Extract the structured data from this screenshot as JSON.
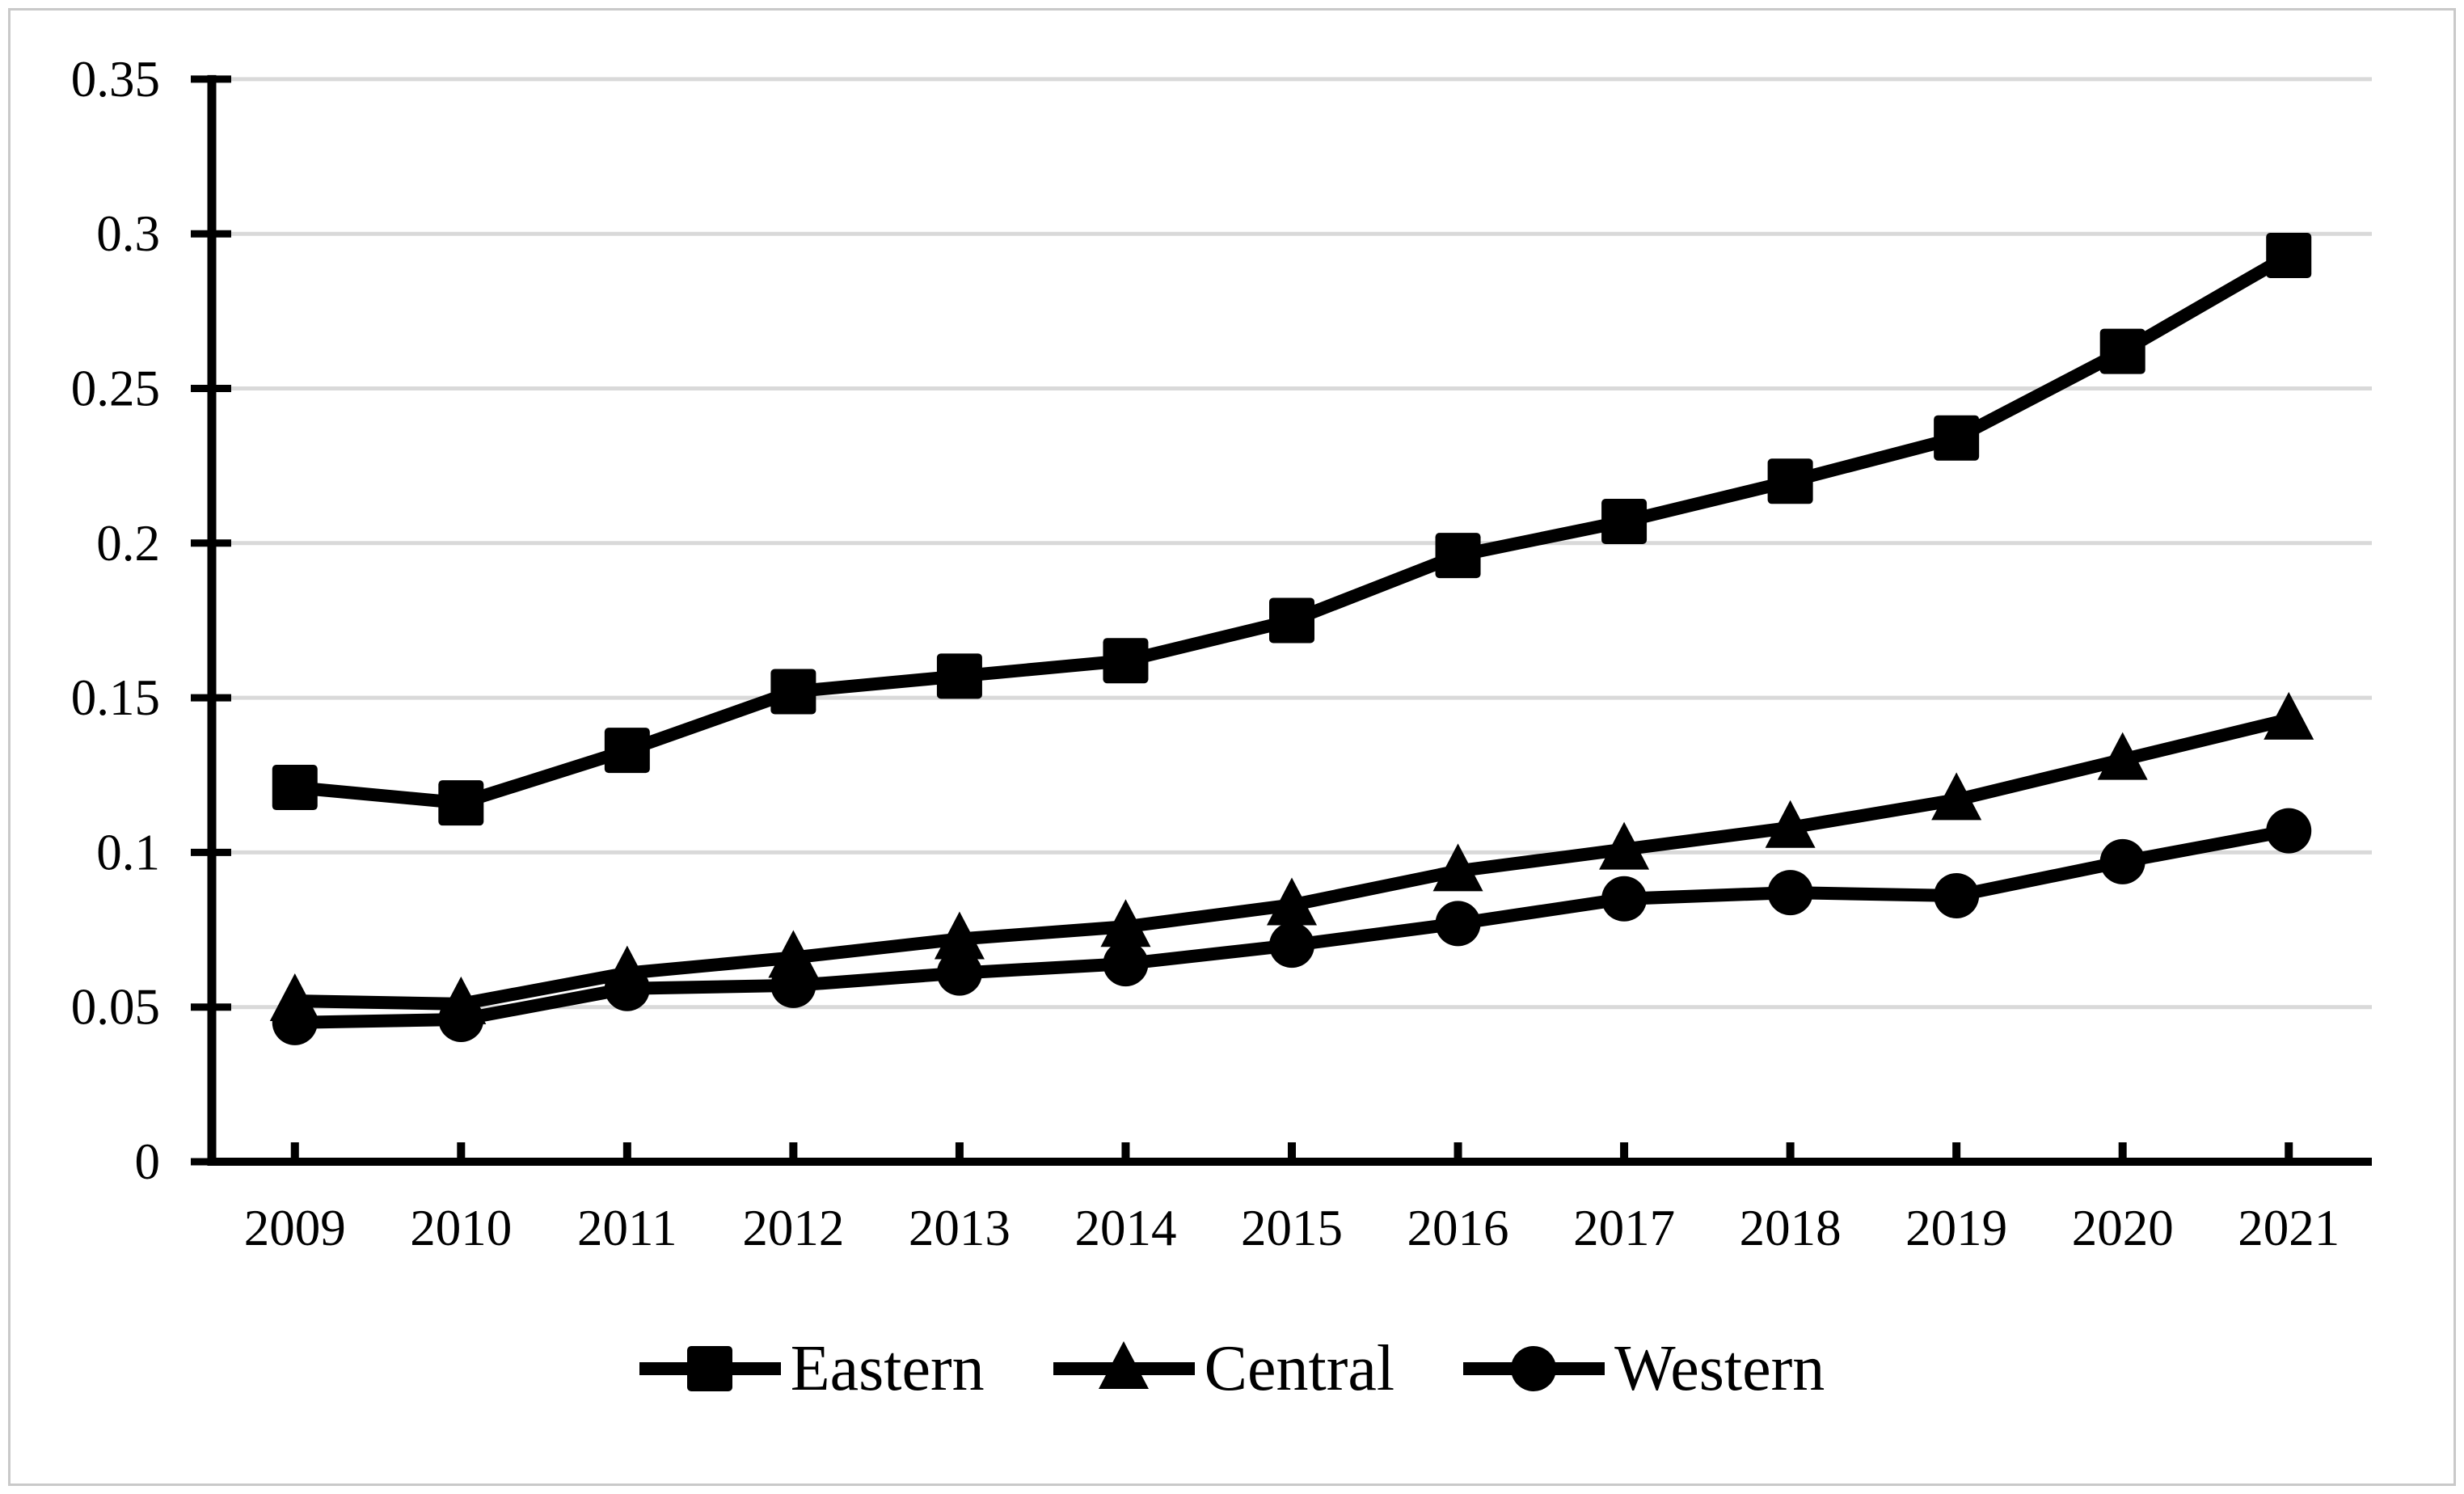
{
  "figure": {
    "background_color": "#ffffff",
    "border_color": "#c9c9c9"
  },
  "chart_data": {
    "type": "line",
    "title": "",
    "xlabel": "",
    "ylabel": "",
    "categories": [
      "2009",
      "2010",
      "2011",
      "2012",
      "2013",
      "2014",
      "2015",
      "2016",
      "2017",
      "2018",
      "2019",
      "2020",
      "2021"
    ],
    "series": [
      {
        "name": "Eastern",
        "marker": "square",
        "values": [
          0.121,
          0.116,
          0.133,
          0.152,
          0.157,
          0.162,
          0.175,
          0.196,
          0.207,
          0.22,
          0.234,
          0.262,
          0.293
        ]
      },
      {
        "name": "Central",
        "marker": "triangle",
        "values": [
          0.052,
          0.051,
          0.061,
          0.066,
          0.072,
          0.076,
          0.083,
          0.094,
          0.101,
          0.108,
          0.117,
          0.13,
          0.143
        ]
      },
      {
        "name": "Western",
        "marker": "circle",
        "values": [
          0.045,
          0.046,
          0.056,
          0.057,
          0.061,
          0.064,
          0.07,
          0.077,
          0.085,
          0.087,
          0.086,
          0.097,
          0.107
        ]
      }
    ],
    "ylim": [
      0,
      0.35
    ],
    "ytick_step": 0.05,
    "ytick_labels": [
      "0",
      "0.05",
      "0.1",
      "0.15",
      "0.2",
      "0.25",
      "0.3",
      "0.35"
    ],
    "grid": true,
    "grid_color": "#d9d9d9",
    "line_color": "#000000",
    "legend_position": "bottom"
  }
}
